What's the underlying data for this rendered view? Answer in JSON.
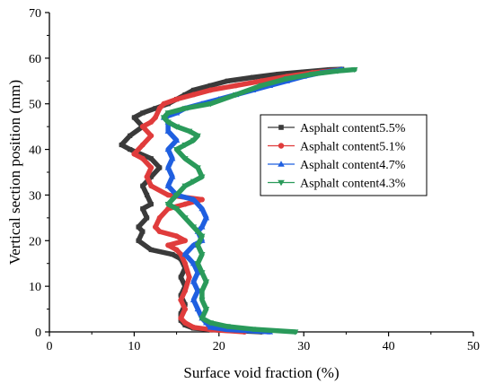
{
  "chart_data": {
    "type": "scatter",
    "xlabel": "Surface void fraction (%)",
    "ylabel": "Vertical section position (mm)",
    "xlim": [
      0,
      50
    ],
    "ylim": [
      0,
      70
    ],
    "xticks": [
      0,
      10,
      20,
      30,
      40,
      50
    ],
    "yticks": [
      0,
      10,
      20,
      30,
      40,
      50,
      60,
      70
    ],
    "grid": false,
    "legend_position": "right",
    "series": [
      {
        "name": "Asphalt content5.5%",
        "color": "#3a3a3a",
        "marker": "square",
        "points": [
          [
            25,
            0
          ],
          [
            20,
            0.4
          ],
          [
            17,
            0.8
          ],
          [
            16,
            1.5
          ],
          [
            15.5,
            2.5
          ],
          [
            15.5,
            4
          ],
          [
            16,
            6
          ],
          [
            15.5,
            8
          ],
          [
            16,
            10
          ],
          [
            15.5,
            12
          ],
          [
            16,
            14
          ],
          [
            15.5,
            16
          ],
          [
            14.5,
            17
          ],
          [
            12,
            18
          ],
          [
            10.5,
            20
          ],
          [
            11,
            22
          ],
          [
            10.5,
            23
          ],
          [
            11.5,
            25
          ],
          [
            11,
            27
          ],
          [
            12,
            28
          ],
          [
            11.5,
            30
          ],
          [
            11,
            32
          ],
          [
            12,
            34
          ],
          [
            13,
            36
          ],
          [
            12,
            38
          ],
          [
            9.5,
            40
          ],
          [
            8.5,
            41
          ],
          [
            9.5,
            43
          ],
          [
            11,
            45
          ],
          [
            10,
            47
          ],
          [
            11,
            48
          ],
          [
            12.5,
            49
          ],
          [
            14,
            50
          ],
          [
            15,
            51
          ],
          [
            16,
            52
          ],
          [
            17,
            53
          ],
          [
            19,
            54
          ],
          [
            21,
            55
          ],
          [
            24,
            55.8
          ],
          [
            27,
            56.5
          ],
          [
            30,
            57
          ],
          [
            33,
            57.5
          ],
          [
            34.5,
            57.6
          ]
        ]
      },
      {
        "name": "Asphalt content5.1%",
        "color": "#e03c3c",
        "marker": "circle",
        "points": [
          [
            23,
            0
          ],
          [
            19,
            0.5
          ],
          [
            17,
            1
          ],
          [
            16,
            2
          ],
          [
            15.5,
            3
          ],
          [
            16,
            5
          ],
          [
            15.5,
            7
          ],
          [
            16,
            9
          ],
          [
            16.5,
            12
          ],
          [
            16,
            15
          ],
          [
            15.5,
            17
          ],
          [
            15,
            18
          ],
          [
            14,
            19
          ],
          [
            16,
            20
          ],
          [
            15,
            21
          ],
          [
            13,
            22
          ],
          [
            12.5,
            23
          ],
          [
            13,
            25
          ],
          [
            14,
            27
          ],
          [
            16,
            28
          ],
          [
            18,
            29
          ],
          [
            14,
            30
          ],
          [
            12,
            32
          ],
          [
            11.5,
            34
          ],
          [
            12,
            36
          ],
          [
            11,
            38
          ],
          [
            10,
            39
          ],
          [
            11,
            41
          ],
          [
            12,
            43
          ],
          [
            11,
            45
          ],
          [
            12,
            46
          ],
          [
            12.5,
            47
          ],
          [
            13,
            49
          ],
          [
            13.5,
            50
          ],
          [
            15,
            51
          ],
          [
            17,
            52
          ],
          [
            19,
            53
          ],
          [
            22,
            54
          ],
          [
            25,
            55
          ],
          [
            28,
            56
          ],
          [
            31,
            56.8
          ],
          [
            34,
            57.4
          ]
        ]
      },
      {
        "name": "Asphalt content4.7%",
        "color": "#1f5fe0",
        "marker": "triangle",
        "points": [
          [
            26,
            0
          ],
          [
            21,
            0.5
          ],
          [
            19,
            1
          ],
          [
            18.5,
            2
          ],
          [
            18,
            3
          ],
          [
            17.5,
            5
          ],
          [
            17,
            7
          ],
          [
            17.5,
            9
          ],
          [
            17,
            11
          ],
          [
            17.5,
            13
          ],
          [
            17,
            15
          ],
          [
            16,
            17
          ],
          [
            17,
            19
          ],
          [
            18,
            20
          ],
          [
            17.5,
            22
          ],
          [
            18,
            23
          ],
          [
            18.5,
            25
          ],
          [
            18,
            27
          ],
          [
            17,
            29
          ],
          [
            15,
            30
          ],
          [
            14,
            32
          ],
          [
            14.5,
            34
          ],
          [
            14,
            36
          ],
          [
            14.5,
            38
          ],
          [
            14,
            40
          ],
          [
            15,
            42
          ],
          [
            14,
            44
          ],
          [
            14,
            46
          ],
          [
            13.5,
            47
          ],
          [
            15,
            48
          ],
          [
            16,
            49
          ],
          [
            18,
            50
          ],
          [
            20,
            51
          ],
          [
            22,
            52
          ],
          [
            24,
            53
          ],
          [
            26,
            54
          ],
          [
            28,
            55
          ],
          [
            30,
            56
          ],
          [
            32,
            56.8
          ],
          [
            34.5,
            57.5
          ]
        ]
      },
      {
        "name": "Asphalt content4.3%",
        "color": "#2a9a5a",
        "marker": "triangle-down",
        "points": [
          [
            29,
            0
          ],
          [
            24,
            0.6
          ],
          [
            21,
            1.2
          ],
          [
            19,
            2
          ],
          [
            18,
            3
          ],
          [
            18.5,
            5
          ],
          [
            18,
            7
          ],
          [
            18,
            9
          ],
          [
            18.5,
            11
          ],
          [
            18,
            13
          ],
          [
            17.5,
            15
          ],
          [
            18,
            17
          ],
          [
            17.5,
            19
          ],
          [
            18,
            21
          ],
          [
            17,
            23
          ],
          [
            16,
            25
          ],
          [
            15,
            27
          ],
          [
            14,
            28
          ],
          [
            15,
            30
          ],
          [
            16,
            32
          ],
          [
            17,
            33
          ],
          [
            18,
            34
          ],
          [
            17.5,
            36
          ],
          [
            16,
            38
          ],
          [
            15,
            40
          ],
          [
            16,
            41
          ],
          [
            17,
            42
          ],
          [
            17.5,
            43
          ],
          [
            16.5,
            44
          ],
          [
            15,
            45
          ],
          [
            14,
            46
          ],
          [
            13.5,
            47
          ],
          [
            14,
            48
          ],
          [
            16,
            49
          ],
          [
            19,
            50
          ],
          [
            22,
            52
          ],
          [
            25,
            54
          ],
          [
            28,
            55.5
          ],
          [
            31,
            56.5
          ],
          [
            34,
            57.2
          ],
          [
            36,
            57.5
          ]
        ]
      }
    ]
  }
}
